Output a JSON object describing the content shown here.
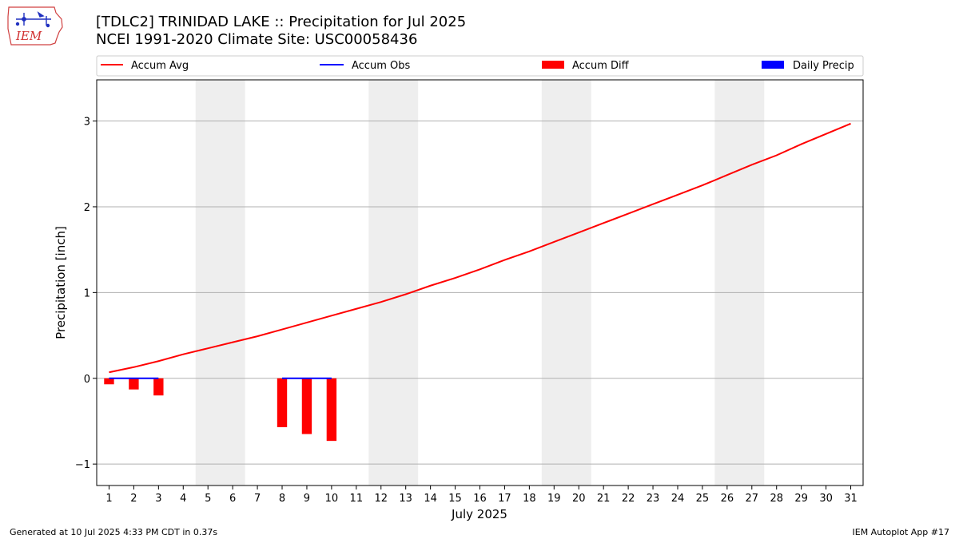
{
  "header": {
    "title_line1": "[TDLC2] TRINIDAD LAKE :: Precipitation for Jul 2025",
    "title_line2": "NCEI 1991-2020 Climate Site: USC00058436"
  },
  "logo": {
    "text": "IEM",
    "icon": "iem-iowa-logo"
  },
  "footer": {
    "generated": "Generated at 10 Jul 2025 4:33 PM CDT in 0.37s",
    "app": "IEM Autoplot App #17"
  },
  "colors": {
    "avg": "#ff0000",
    "obs": "#0000ff",
    "diff": "#ff0000",
    "daily": "#0000ff",
    "weekend": "#eeeeee",
    "grid": "#b0b0b0"
  },
  "chart_data": {
    "type": "line",
    "title": "[TDLC2] TRINIDAD LAKE :: Precipitation for Jul 2025",
    "subtitle": "NCEI 1991-2020 Climate Site: USC00058436",
    "xlabel": "July 2025",
    "ylabel": "Precipitation [inch]",
    "xlim": [
      0.5,
      31.5
    ],
    "ylim": [
      -1.25,
      3.48
    ],
    "yticks": [
      -1,
      0,
      1,
      2,
      3
    ],
    "ytick_labels": [
      "−1",
      "0",
      "1",
      "2",
      "3"
    ],
    "x": [
      1,
      2,
      3,
      4,
      5,
      6,
      7,
      8,
      9,
      10,
      11,
      12,
      13,
      14,
      15,
      16,
      17,
      18,
      19,
      20,
      21,
      22,
      23,
      24,
      25,
      26,
      27,
      28,
      29,
      30,
      31
    ],
    "xtick_labels": [
      "1",
      "2",
      "3",
      "4",
      "5",
      "6",
      "7",
      "8",
      "9",
      "10",
      "11",
      "12",
      "13",
      "14",
      "15",
      "16",
      "17",
      "18",
      "19",
      "20",
      "21",
      "22",
      "23",
      "24",
      "25",
      "26",
      "27",
      "28",
      "29",
      "30",
      "31"
    ],
    "weekend_bands": [
      [
        4.5,
        6.5
      ],
      [
        11.5,
        13.5
      ],
      [
        18.5,
        20.5
      ],
      [
        25.5,
        27.5
      ]
    ],
    "grid": "horizontal",
    "legend_placement": "top",
    "legend": [
      "Accum Avg",
      "Accum Obs",
      "Accum Diff",
      "Daily Precip"
    ],
    "series": [
      {
        "name": "Accum Avg",
        "kind": "line",
        "color": "#ff0000",
        "x": [
          1,
          2,
          3,
          4,
          5,
          6,
          7,
          8,
          9,
          10,
          11,
          12,
          13,
          14,
          15,
          16,
          17,
          18,
          19,
          20,
          21,
          22,
          23,
          24,
          25,
          26,
          27,
          28,
          29,
          30,
          31
        ],
        "values": [
          0.07,
          0.13,
          0.2,
          0.28,
          0.35,
          0.42,
          0.49,
          0.57,
          0.65,
          0.73,
          0.81,
          0.89,
          0.98,
          1.08,
          1.17,
          1.27,
          1.38,
          1.48,
          1.59,
          1.7,
          1.81,
          1.92,
          2.03,
          2.14,
          2.25,
          2.37,
          2.49,
          2.6,
          2.73,
          2.85,
          2.97
        ]
      },
      {
        "name": "Accum Obs",
        "kind": "line",
        "color": "#0000ff",
        "segments": [
          {
            "x": [
              1,
              2,
              3
            ],
            "values": [
              0,
              0,
              0
            ]
          },
          {
            "x": [
              8,
              9,
              10
            ],
            "values": [
              0,
              0,
              0
            ]
          }
        ]
      },
      {
        "name": "Accum Diff",
        "kind": "bar",
        "color": "#ff0000",
        "x": [
          1,
          2,
          3,
          8,
          9,
          10
        ],
        "values": [
          -0.07,
          -0.13,
          -0.2,
          -0.57,
          -0.65,
          -0.73
        ]
      },
      {
        "name": "Daily Precip",
        "kind": "bar",
        "color": "#0000ff",
        "x": [
          1,
          2,
          3,
          8,
          9,
          10
        ],
        "values": [
          0,
          0,
          0,
          0,
          0,
          0
        ]
      }
    ]
  }
}
